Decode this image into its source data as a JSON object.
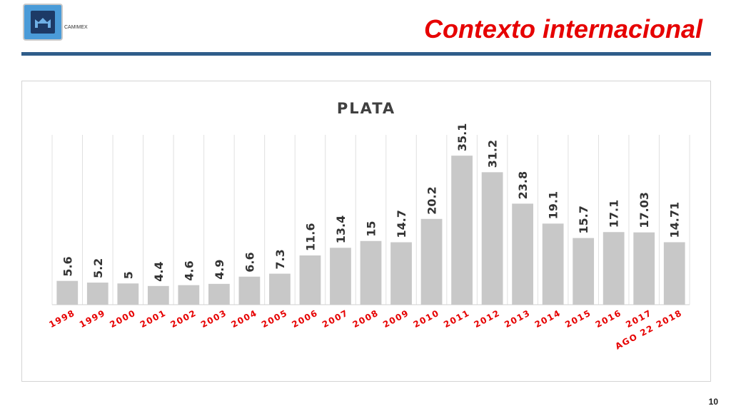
{
  "header": {
    "logo_text": "CAMIMEX",
    "title": "Contexto internacional"
  },
  "footer": {
    "page_number": "10"
  },
  "colors": {
    "title": "#e60000",
    "rule": "#2f5d8a",
    "bar": "#c8c8c8",
    "category_labels": "#e60000"
  },
  "chart_data": {
    "type": "bar",
    "title": "PLATA",
    "xlabel": "",
    "ylabel": "",
    "categories": [
      "1998",
      "1999",
      "2000",
      "2001",
      "2002",
      "2003",
      "2004",
      "2005",
      "2006",
      "2007",
      "2008",
      "2009",
      "2010",
      "2011",
      "2012",
      "2013",
      "2014",
      "2015",
      "2016",
      "2017",
      "AGO 22 2018"
    ],
    "values": [
      5.6,
      5.2,
      5,
      4.4,
      4.6,
      4.9,
      6.6,
      7.3,
      11.6,
      13.4,
      15,
      14.7,
      20.2,
      35.1,
      31.2,
      23.8,
      19.1,
      15.7,
      17.1,
      17.03,
      14.71
    ],
    "value_labels": [
      "5.6",
      "5.2",
      "5",
      "4.4",
      "4.6",
      "4.9",
      "6.6",
      "7.3",
      "11.6",
      "13.4",
      "15",
      "14.7",
      "20.2",
      "35.1",
      "31.2",
      "23.8",
      "19.1",
      "15.7",
      "17.1",
      "17.03",
      "14.71"
    ],
    "ylim": [
      0,
      40
    ],
    "grid": "vertical",
    "legend": "none"
  }
}
